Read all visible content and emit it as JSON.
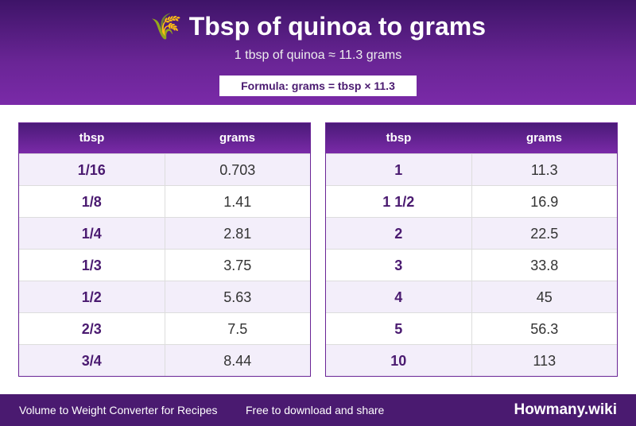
{
  "header": {
    "icon": "🌾",
    "title": "Tbsp of quinoa to grams",
    "subtitle": "1 tbsp of quinoa ≈ 11.3 grams",
    "formula": "Formula: grams = tbsp × 11.3"
  },
  "tables": [
    {
      "columns": [
        "tbsp",
        "grams"
      ],
      "rows": [
        [
          "1/16",
          0.703
        ],
        [
          "1/8",
          1.41
        ],
        [
          "1/4",
          2.81
        ],
        [
          "1/3",
          3.75
        ],
        [
          "1/2",
          5.63
        ],
        [
          "2/3",
          7.5
        ],
        [
          "3/4",
          8.44
        ]
      ]
    },
    {
      "columns": [
        "tbsp",
        "grams"
      ],
      "rows": [
        [
          "1",
          11.3
        ],
        [
          "1 1/2",
          16.9
        ],
        [
          "2",
          22.5
        ],
        [
          "3",
          33.8
        ],
        [
          "4",
          45
        ],
        [
          "5",
          56.3
        ],
        [
          "10",
          113
        ]
      ]
    }
  ],
  "footer": {
    "left": "Volume to Weight Converter for Recipes",
    "middle": "Free to download and share",
    "brand": "Howmany.wiki"
  }
}
